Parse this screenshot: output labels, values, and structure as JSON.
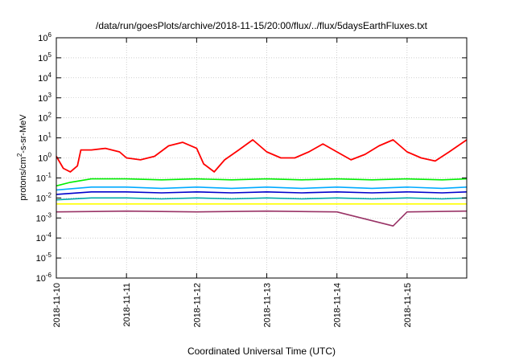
{
  "chart_data": {
    "type": "line",
    "title": "/data/run/goesPlots/archive/2018-11-15/20:00/flux/../flux/5daysEarthFluxes.txt",
    "xlabel": "Coordinated Universal Time (UTC)",
    "ylabel": {
      "pre": "protons/cm",
      "sup": "2",
      "post": "-s-sr-MeV"
    },
    "x_ticks": [
      "2018-11-10",
      "2018-11-11",
      "2018-11-12",
      "2018-11-13",
      "2018-11-14",
      "2018-11-15"
    ],
    "y_scale": "log",
    "ylim_exp": [
      -6,
      6
    ],
    "y_tick_base": "10",
    "y_tick_exps": [
      "-6",
      "-5",
      "-4",
      "-3",
      "-2",
      "-1",
      "0",
      "1",
      "2",
      "3",
      "4",
      "5",
      "6"
    ],
    "grid": true,
    "xlim_days": [
      0,
      5.85
    ],
    "series": [
      {
        "color": "#ff0000",
        "points": [
          [
            0,
            1.2
          ],
          [
            0.1,
            0.3
          ],
          [
            0.2,
            0.2
          ],
          [
            0.3,
            0.4
          ],
          [
            0.35,
            2.5
          ],
          [
            0.5,
            2.5
          ],
          [
            0.7,
            3
          ],
          [
            0.9,
            2
          ],
          [
            1,
            1
          ],
          [
            1.2,
            0.8
          ],
          [
            1.4,
            1.2
          ],
          [
            1.6,
            4
          ],
          [
            1.8,
            6
          ],
          [
            2,
            3
          ],
          [
            2.1,
            0.5
          ],
          [
            2.25,
            0.2
          ],
          [
            2.4,
            0.8
          ],
          [
            2.6,
            2.5
          ],
          [
            2.8,
            8
          ],
          [
            3,
            2
          ],
          [
            3.2,
            1
          ],
          [
            3.4,
            1
          ],
          [
            3.6,
            2
          ],
          [
            3.8,
            5
          ],
          [
            4,
            2
          ],
          [
            4.2,
            0.8
          ],
          [
            4.4,
            1.5
          ],
          [
            4.6,
            4
          ],
          [
            4.8,
            8
          ],
          [
            5,
            2
          ],
          [
            5.2,
            1
          ],
          [
            5.4,
            0.7
          ],
          [
            5.6,
            2
          ],
          [
            5.85,
            8
          ]
        ]
      },
      {
        "color": "#00ee00",
        "points": [
          [
            0,
            0.04
          ],
          [
            0.2,
            0.06
          ],
          [
            0.5,
            0.09
          ],
          [
            1,
            0.09
          ],
          [
            1.5,
            0.08
          ],
          [
            2,
            0.09
          ],
          [
            2.5,
            0.08
          ],
          [
            3,
            0.09
          ],
          [
            3.5,
            0.08
          ],
          [
            4,
            0.09
          ],
          [
            4.5,
            0.08
          ],
          [
            5,
            0.09
          ],
          [
            5.5,
            0.08
          ],
          [
            5.85,
            0.09
          ]
        ]
      },
      {
        "color": "#00aaff",
        "points": [
          [
            0,
            0.025
          ],
          [
            0.5,
            0.035
          ],
          [
            1,
            0.035
          ],
          [
            1.5,
            0.03
          ],
          [
            2,
            0.035
          ],
          [
            2.5,
            0.03
          ],
          [
            3,
            0.035
          ],
          [
            3.5,
            0.03
          ],
          [
            4,
            0.035
          ],
          [
            4.5,
            0.03
          ],
          [
            5,
            0.035
          ],
          [
            5.5,
            0.03
          ],
          [
            5.85,
            0.035
          ]
        ]
      },
      {
        "color": "#0000cc",
        "points": [
          [
            0,
            0.015
          ],
          [
            0.5,
            0.02
          ],
          [
            1,
            0.02
          ],
          [
            1.5,
            0.018
          ],
          [
            2,
            0.02
          ],
          [
            2.5,
            0.018
          ],
          [
            3,
            0.02
          ],
          [
            3.5,
            0.018
          ],
          [
            4,
            0.02
          ],
          [
            4.5,
            0.018
          ],
          [
            5,
            0.02
          ],
          [
            5.5,
            0.018
          ],
          [
            5.85,
            0.02
          ]
        ]
      },
      {
        "color": "#00aaaa",
        "points": [
          [
            0,
            0.008
          ],
          [
            0.5,
            0.01
          ],
          [
            1,
            0.01
          ],
          [
            1.5,
            0.009
          ],
          [
            2,
            0.01
          ],
          [
            2.5,
            0.009
          ],
          [
            3,
            0.01
          ],
          [
            3.5,
            0.009
          ],
          [
            4,
            0.01
          ],
          [
            4.5,
            0.009
          ],
          [
            5,
            0.01
          ],
          [
            5.5,
            0.009
          ],
          [
            5.85,
            0.01
          ]
        ]
      },
      {
        "color": "#ffff00",
        "points": [
          [
            0,
            0.005
          ],
          [
            1,
            0.005
          ],
          [
            2,
            0.005
          ],
          [
            3,
            0.005
          ],
          [
            4,
            0.005
          ],
          [
            5,
            0.005
          ],
          [
            5.85,
            0.005
          ]
        ]
      },
      {
        "color": "#993366",
        "points": [
          [
            0,
            0.002
          ],
          [
            1,
            0.0022
          ],
          [
            2,
            0.002
          ],
          [
            3,
            0.0022
          ],
          [
            4,
            0.002
          ],
          [
            4.8,
            0.0004
          ],
          [
            5,
            0.002
          ],
          [
            5.85,
            0.0022
          ]
        ]
      }
    ]
  }
}
